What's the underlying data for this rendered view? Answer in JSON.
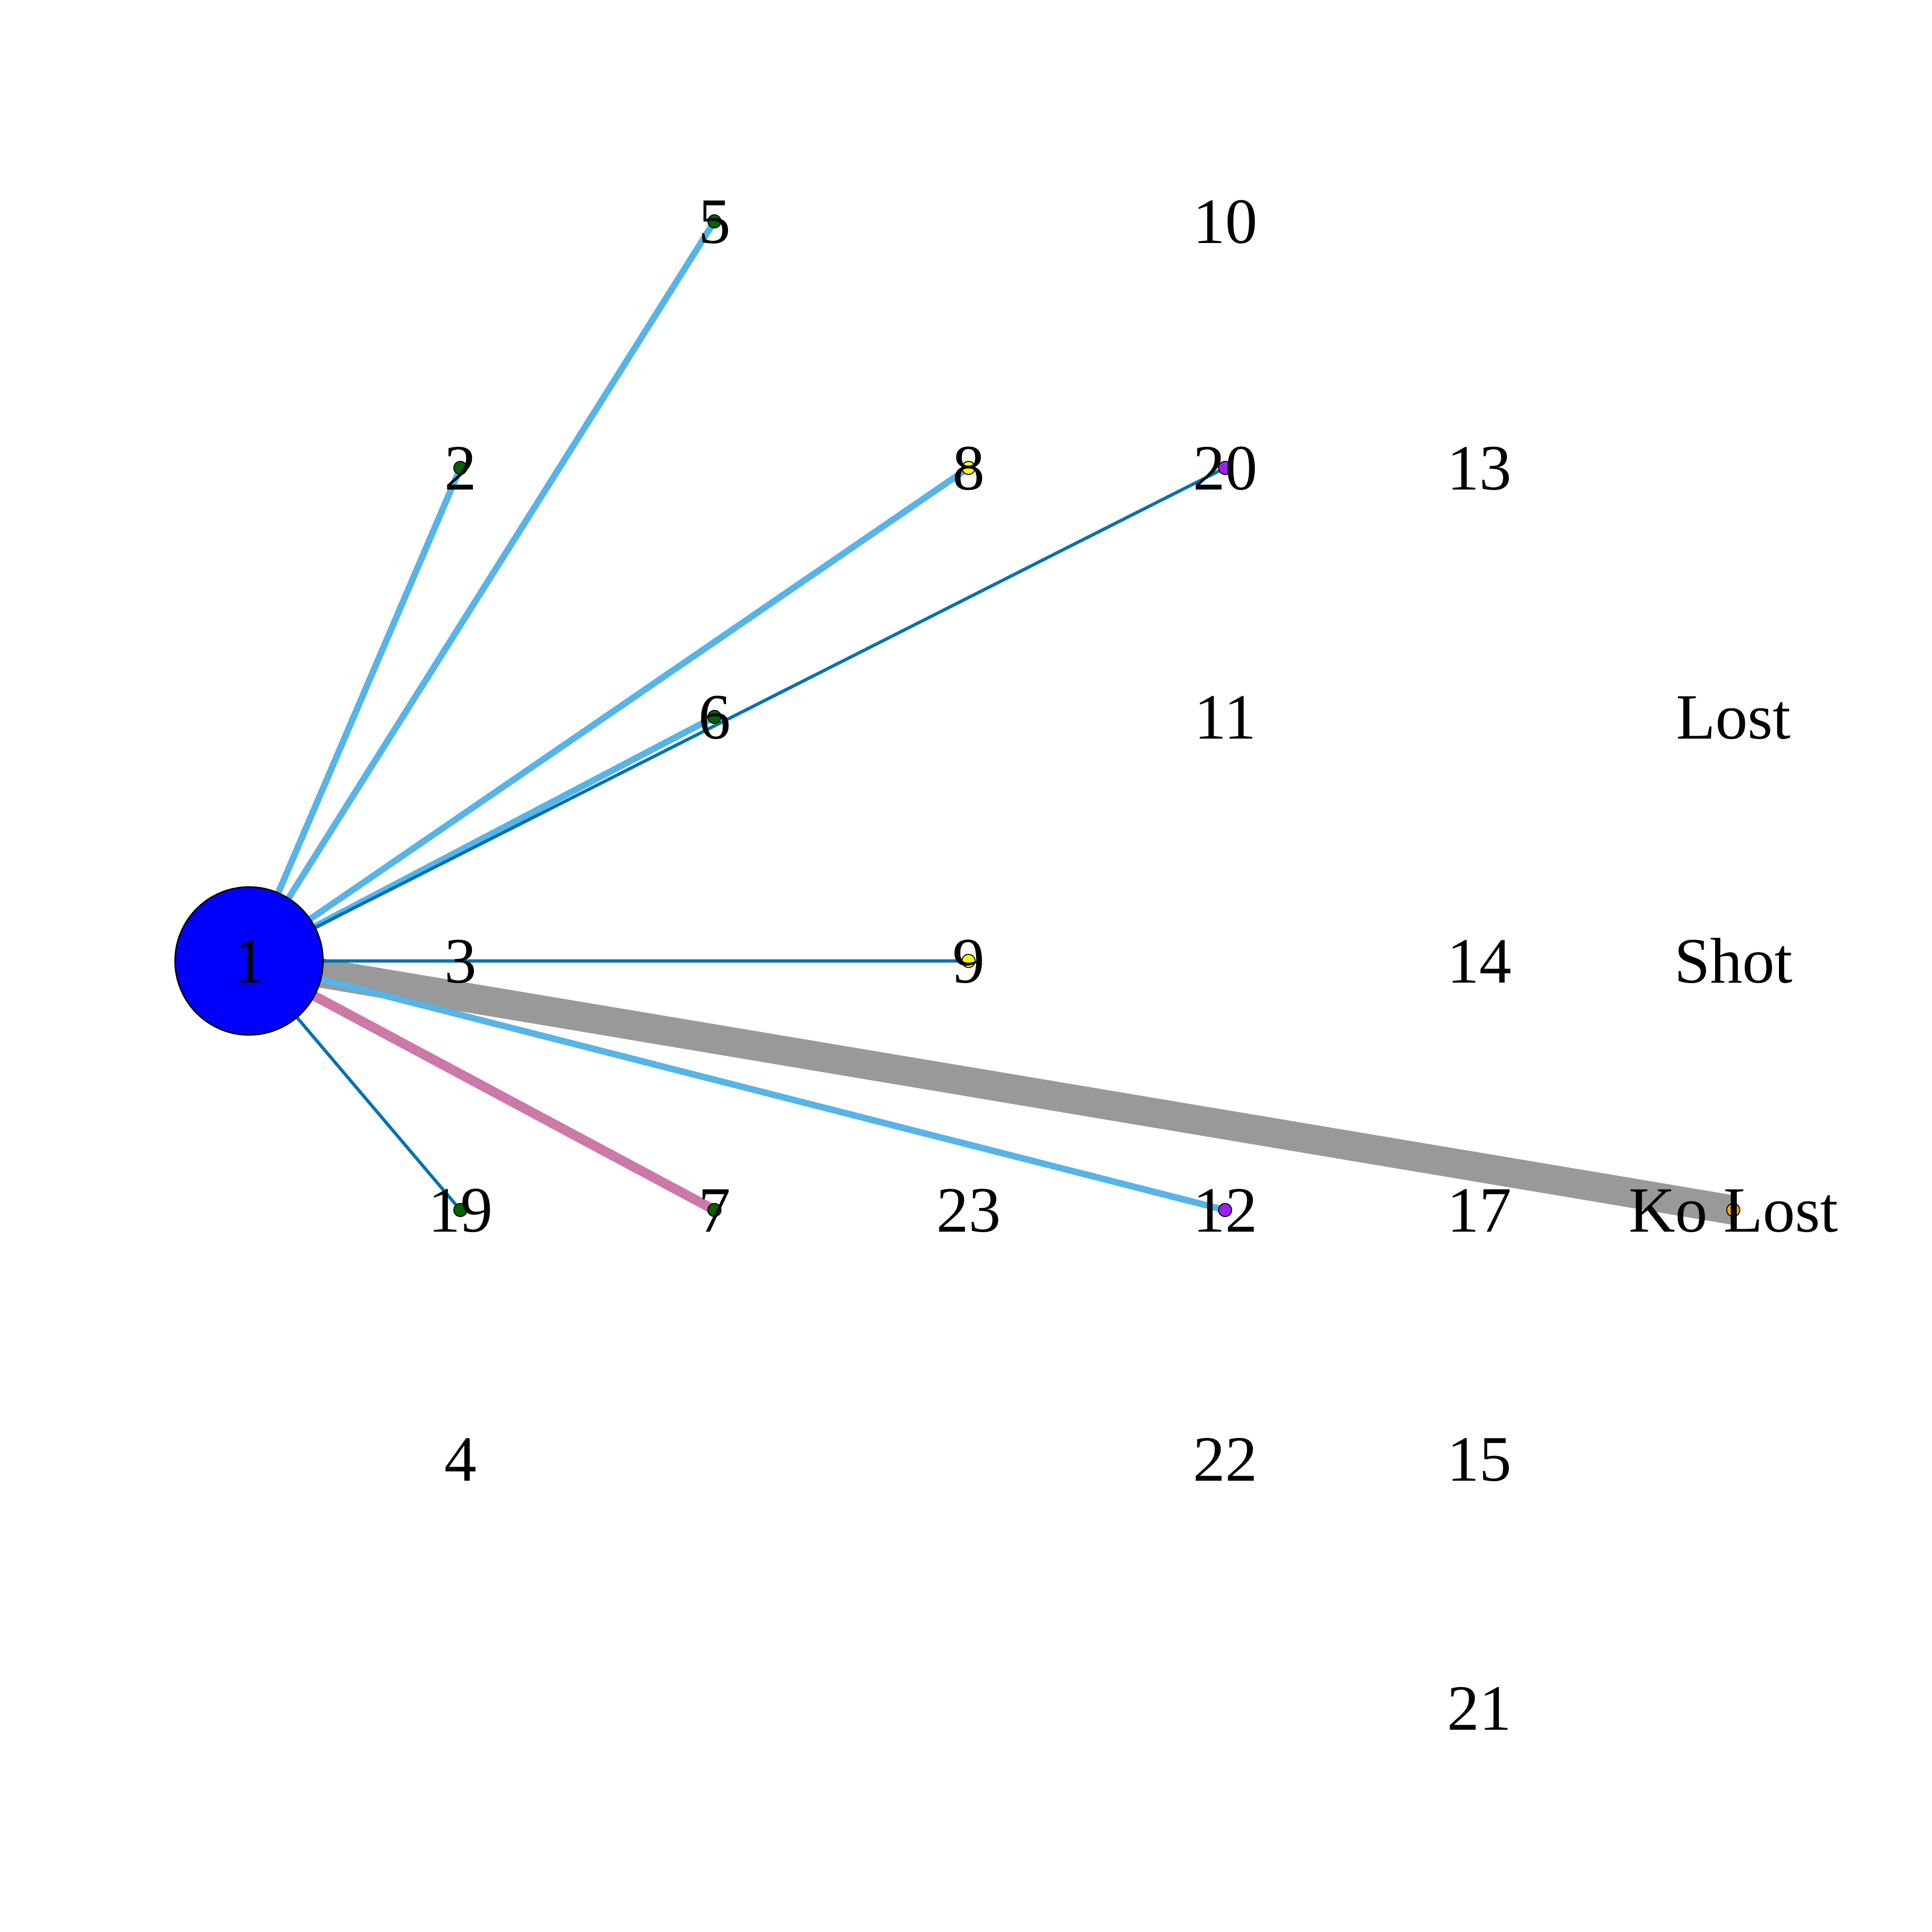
{
  "colors": {
    "background": "#ffffff",
    "label": "#000000",
    "node_outline": "#000000",
    "edge_light_blue": "#56b4e9",
    "edge_dark_blue": "#0072b2",
    "edge_pink": "#cc79a7",
    "edge_gray": "#999999"
  },
  "graph": {
    "hub_node": "1",
    "nodes": [
      {
        "id": "1",
        "label": "1",
        "color": "#0000ff"
      },
      {
        "id": "2",
        "label": "2",
        "color": "#006400"
      },
      {
        "id": "3",
        "label": "3",
        "color": null
      },
      {
        "id": "4",
        "label": "4",
        "color": null
      },
      {
        "id": "5",
        "label": "5",
        "color": "#006400"
      },
      {
        "id": "6",
        "label": "6",
        "color": "#006400"
      },
      {
        "id": "7",
        "label": "7",
        "color": "#006400"
      },
      {
        "id": "8",
        "label": "8",
        "color": "#ffff00"
      },
      {
        "id": "9",
        "label": "9",
        "color": "#ffff00"
      },
      {
        "id": "10",
        "label": "10",
        "color": null
      },
      {
        "id": "11",
        "label": "11",
        "color": null
      },
      {
        "id": "12",
        "label": "12",
        "color": "#a020f0"
      },
      {
        "id": "13",
        "label": "13",
        "color": null
      },
      {
        "id": "14",
        "label": "14",
        "color": null
      },
      {
        "id": "15",
        "label": "15",
        "color": null
      },
      {
        "id": "17",
        "label": "17",
        "color": null
      },
      {
        "id": "19",
        "label": "19",
        "color": "#006400"
      },
      {
        "id": "20",
        "label": "20",
        "color": "#a020f0"
      },
      {
        "id": "21",
        "label": "21",
        "color": null
      },
      {
        "id": "22",
        "label": "22",
        "color": null
      },
      {
        "id": "23",
        "label": "23",
        "color": null
      },
      {
        "id": "lost",
        "label": "Lost",
        "color": null
      },
      {
        "id": "shot",
        "label": "Shot",
        "color": null
      },
      {
        "id": "ko_lost",
        "label": "Ko Lost",
        "color": "#ffa500"
      }
    ],
    "edges": [
      {
        "from": "1",
        "to": "2",
        "color": "#56b4e9",
        "weight": 2
      },
      {
        "from": "1",
        "to": "5",
        "color": "#56b4e9",
        "weight": 2
      },
      {
        "from": "1",
        "to": "8",
        "color": "#56b4e9",
        "weight": 2
      },
      {
        "from": "1",
        "to": "6",
        "color": "#56b4e9",
        "weight": 2
      },
      {
        "from": "1",
        "to": "20",
        "color": "#0072b2",
        "weight": 1
      },
      {
        "from": "1",
        "to": "9",
        "color": "#0072b2",
        "weight": 1
      },
      {
        "from": "1",
        "to": "19",
        "color": "#0072b2",
        "weight": 1
      },
      {
        "from": "1",
        "to": "7",
        "color": "#cc79a7",
        "weight": 3
      },
      {
        "from": "1",
        "to": "12",
        "color": "#56b4e9",
        "weight": 2
      },
      {
        "from": "1",
        "to": "ko_lost",
        "color": "#999999",
        "weight": 9
      }
    ]
  }
}
